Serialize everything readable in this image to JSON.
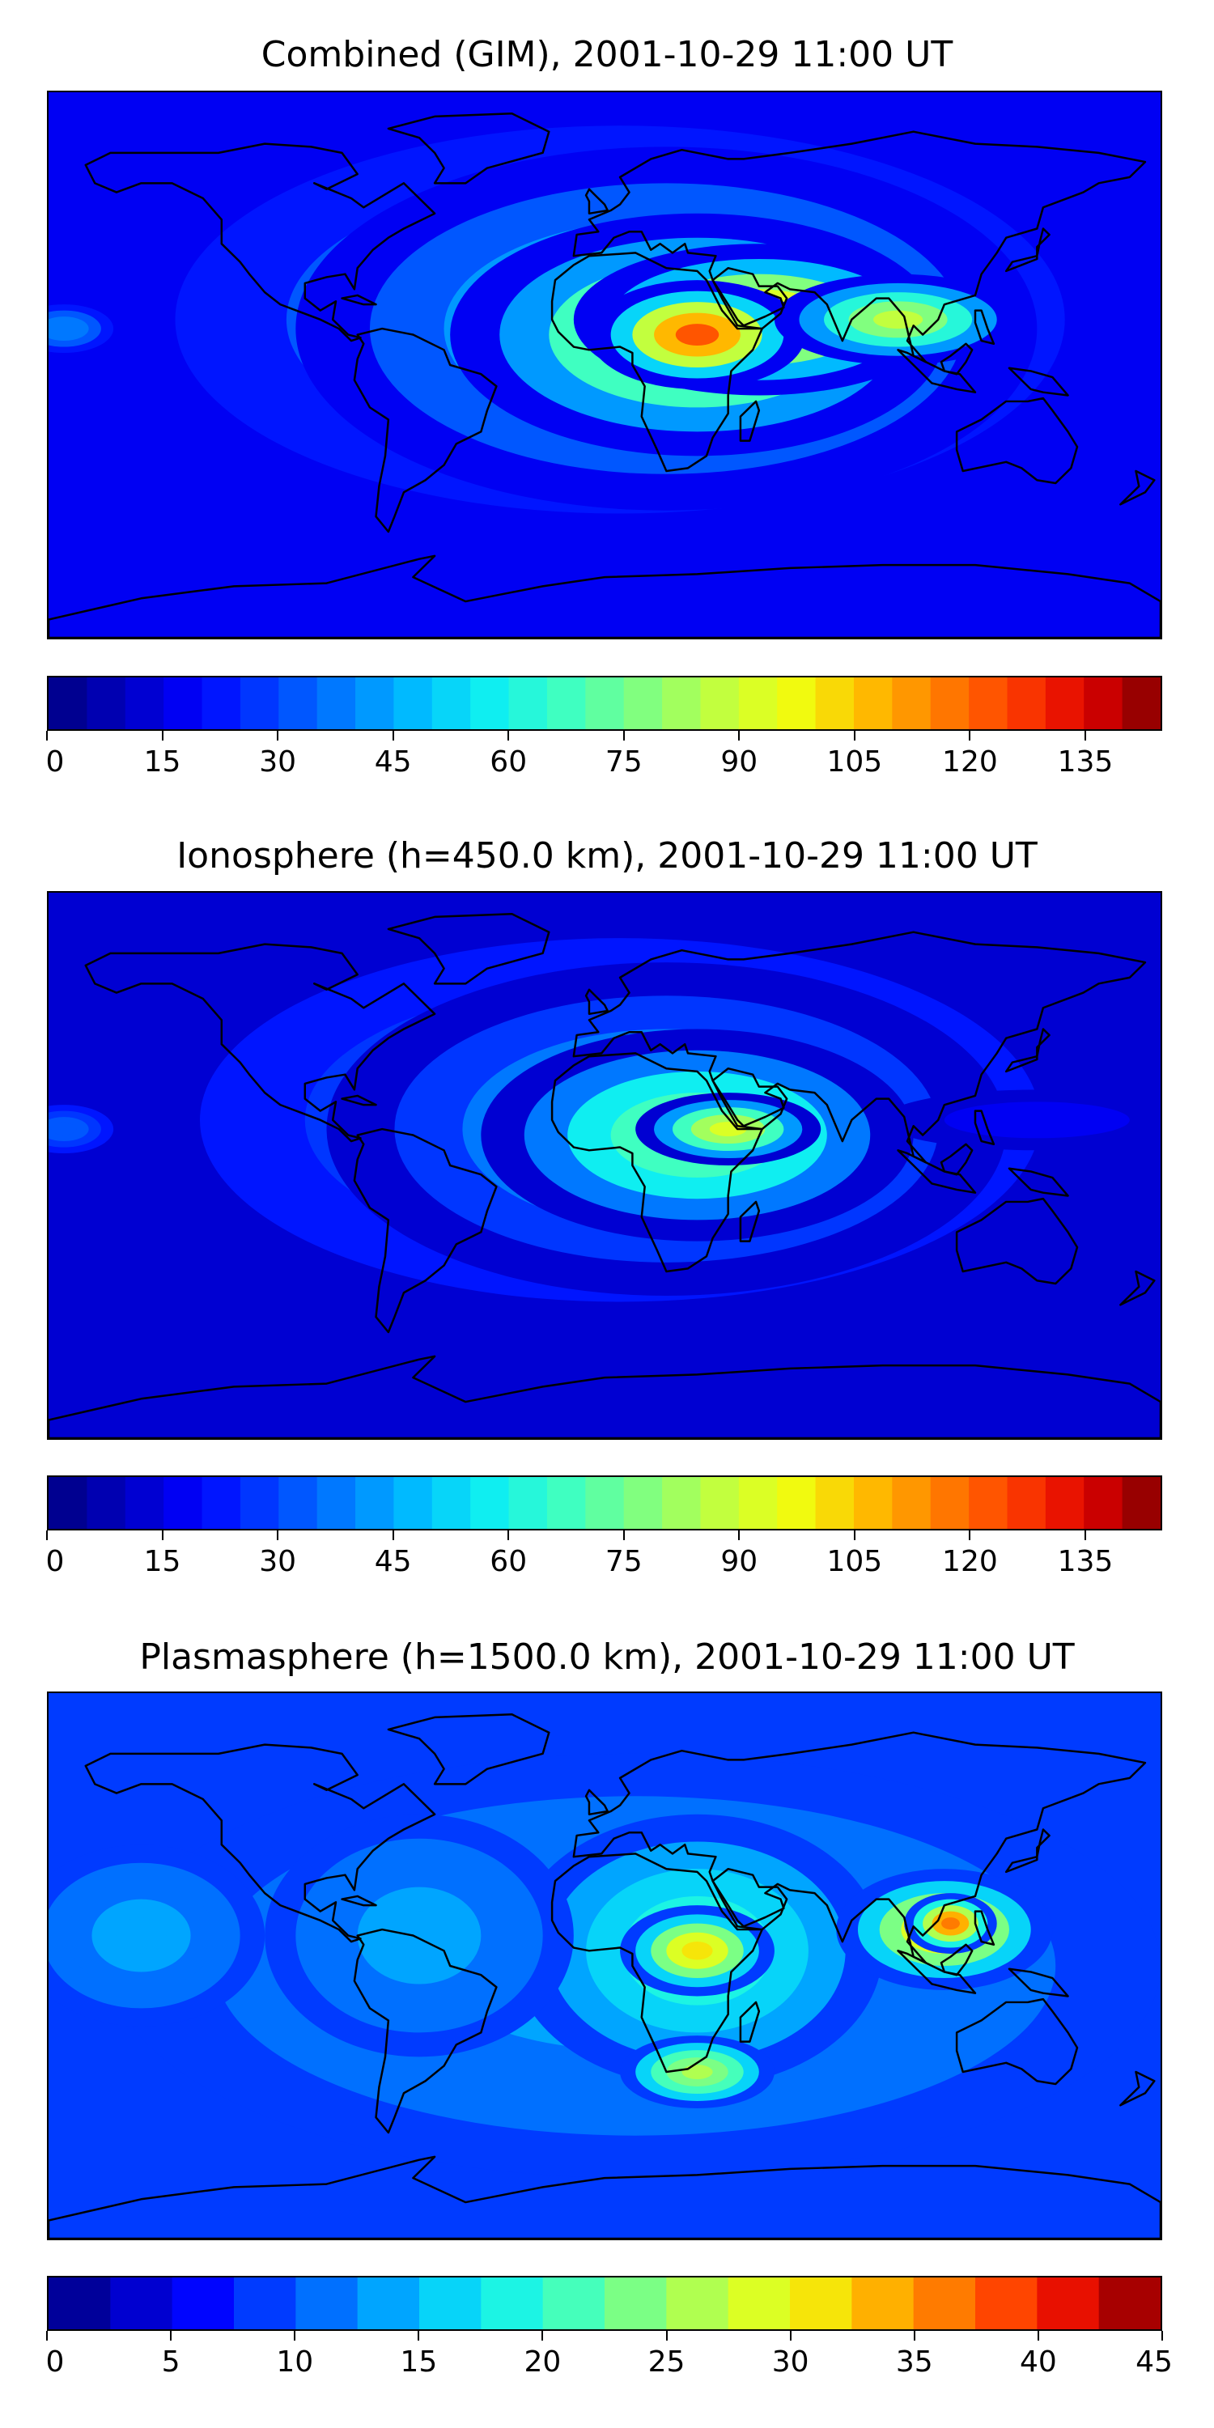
{
  "colorscale": [
    "#00007f",
    "#0000c0",
    "#0000ff",
    "#0040ff",
    "#0080ff",
    "#00c0ff",
    "#10f0f0",
    "#40ffc0",
    "#80ff80",
    "#c0ff40",
    "#f0ff10",
    "#ffc000",
    "#ff8000",
    "#ff4000",
    "#e00000",
    "#7f0000"
  ],
  "land_outline_color": "#000000",
  "panels": [
    {
      "id": "combined",
      "title": "Combined (GIM), 2001-10-29 11:00 UT",
      "vmin": 0,
      "vmax": 145,
      "bins": 29,
      "ticks": [
        "0",
        "15",
        "30",
        "45",
        "60",
        "75",
        "90",
        "105",
        "120",
        "135"
      ],
      "tick_values": [
        0,
        15,
        30,
        45,
        60,
        75,
        90,
        105,
        120,
        135
      ],
      "background_level": 15,
      "blobs": [
        {
          "lon": 5,
          "lat": 15,
          "rx": 180,
          "ry": 80,
          "v": 40
        },
        {
          "lon": 20,
          "lat": 12,
          "rx": 120,
          "ry": 60,
          "v": 60
        },
        {
          "lon": 30,
          "lat": 10,
          "rx": 80,
          "ry": 40,
          "v": 95
        },
        {
          "lon": 50,
          "lat": 15,
          "rx": 60,
          "ry": 25,
          "v": 110
        },
        {
          "lon": 30,
          "lat": 10,
          "rx": 35,
          "ry": 18,
          "v": 125
        },
        {
          "lon": 95,
          "lat": 15,
          "rx": 40,
          "ry": 15,
          "v": 90
        },
        {
          "lon": -175,
          "lat": 12,
          "rx": 20,
          "ry": 10,
          "v": 40
        }
      ]
    },
    {
      "id": "ionosphere",
      "title": "Ionosphere  (h=450.0 km), 2001-10-29 11:00 UT",
      "vmin": 0,
      "vmax": 145,
      "bins": 29,
      "ticks": [
        "0",
        "15",
        "30",
        "45",
        "60",
        "75",
        "90",
        "105",
        "120",
        "135"
      ],
      "tick_values": [
        0,
        15,
        30,
        45,
        60,
        75,
        90,
        105,
        120,
        135
      ],
      "background_level": 12,
      "blobs": [
        {
          "lon": 5,
          "lat": 15,
          "rx": 170,
          "ry": 75,
          "v": 35
        },
        {
          "lon": 20,
          "lat": 12,
          "rx": 110,
          "ry": 55,
          "v": 55
        },
        {
          "lon": 30,
          "lat": 10,
          "rx": 70,
          "ry": 35,
          "v": 80
        },
        {
          "lon": 40,
          "lat": 12,
          "rx": 30,
          "ry": 12,
          "v": 95
        },
        {
          "lon": 140,
          "lat": 15,
          "rx": 50,
          "ry": 10,
          "v": 20
        },
        {
          "lon": -175,
          "lat": 12,
          "rx": 20,
          "ry": 10,
          "v": 35
        }
      ]
    },
    {
      "id": "plasmasphere",
      "title": "Plasmasphere (h=1500.0 km), 2001-10-29 11:00 UT",
      "vmin": 0,
      "vmax": 45,
      "bins": 18,
      "ticks": [
        "0",
        "5",
        "10",
        "15",
        "20",
        "25",
        "30",
        "35",
        "40",
        "45"
      ],
      "tick_values": [
        0,
        5,
        10,
        15,
        20,
        25,
        30,
        35,
        40,
        45
      ],
      "background_level": 8,
      "blobs": [
        {
          "lon": 10,
          "lat": 0,
          "rx": 170,
          "ry": 70,
          "v": 14
        },
        {
          "lon": 30,
          "lat": 5,
          "rx": 60,
          "ry": 45,
          "v": 22
        },
        {
          "lon": 30,
          "lat": 5,
          "rx": 25,
          "ry": 15,
          "v": 32
        },
        {
          "lon": 30,
          "lat": -35,
          "rx": 25,
          "ry": 12,
          "v": 28
        },
        {
          "lon": 110,
          "lat": 12,
          "rx": 35,
          "ry": 20,
          "v": 32
        },
        {
          "lon": 112,
          "lat": 14,
          "rx": 15,
          "ry": 10,
          "v": 38
        },
        {
          "lon": -60,
          "lat": 10,
          "rx": 50,
          "ry": 40,
          "v": 14
        },
        {
          "lon": -150,
          "lat": 10,
          "rx": 40,
          "ry": 30,
          "v": 14
        }
      ]
    }
  ]
}
